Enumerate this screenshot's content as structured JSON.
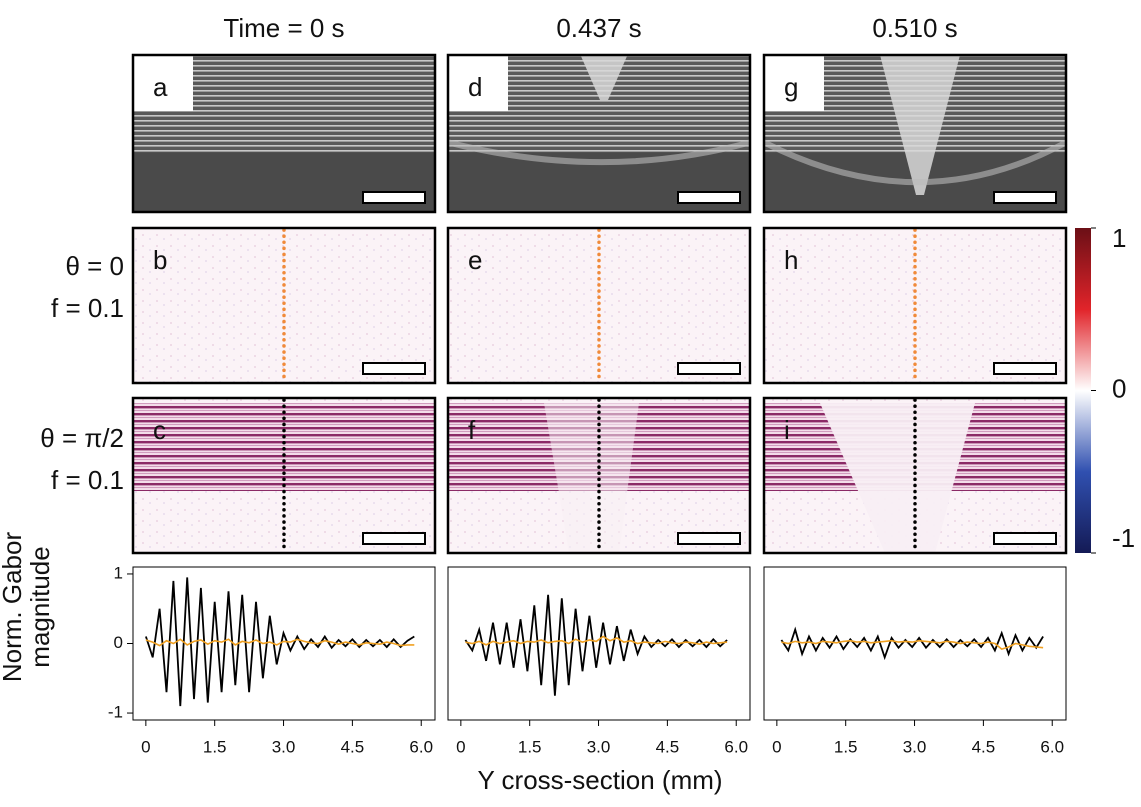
{
  "figure": {
    "column_titles": [
      "Time = 0 s",
      "0.437 s",
      "0.510 s"
    ],
    "panels": [
      [
        "a",
        "b",
        "c"
      ],
      [
        "d",
        "e",
        "f"
      ],
      [
        "g",
        "h",
        "i"
      ]
    ],
    "row_labels": [
      [
        "θ = 0",
        "f = 0.1"
      ],
      [
        "θ = π/2",
        "f = 0.1"
      ]
    ],
    "colorbar": {
      "lim": [
        -1,
        1
      ],
      "ticks": [
        1,
        0,
        -1
      ]
    },
    "y_label": [
      "Norm. Gabor",
      "magnitude"
    ],
    "x_label": "Y cross-section (mm)"
  },
  "chart_data": [
    {
      "type": "line",
      "x": [
        0,
        0.15,
        0.3,
        0.45,
        0.6,
        0.75,
        0.9,
        1.05,
        1.2,
        1.35,
        1.5,
        1.65,
        1.8,
        1.95,
        2.1,
        2.25,
        2.4,
        2.55,
        2.7,
        2.85,
        3,
        3.15,
        3.3,
        3.45,
        3.6,
        3.75,
        3.9,
        4.05,
        4.2,
        4.35,
        4.5,
        4.65,
        4.8,
        4.95,
        5.1,
        5.25,
        5.4,
        5.55,
        5.7,
        5.85
      ],
      "series": [
        {
          "color": "#000000",
          "values": [
            0.1,
            -0.2,
            0.5,
            -0.7,
            0.9,
            -0.9,
            0.95,
            -0.8,
            0.8,
            -0.85,
            0.6,
            -0.7,
            0.75,
            -0.6,
            0.7,
            -0.7,
            0.6,
            -0.5,
            0.4,
            -0.3,
            0.15,
            -0.1,
            0.1,
            -0.08,
            0.06,
            -0.05,
            0.1,
            -0.06,
            0.05,
            -0.04,
            0.06,
            -0.05,
            0.05,
            -0.04,
            0.05,
            -0.05,
            0.06,
            -0.05,
            0.04,
            0.1
          ]
        },
        {
          "color": "#f0a020",
          "values": [
            0.05,
            0.02,
            -0.03,
            0.04,
            0.0,
            0.06,
            -0.02,
            0.03,
            0.05,
            -0.01,
            0.04,
            0.02,
            0.06,
            -0.02,
            0.03,
            0.01,
            0.05,
            0.0,
            0.02,
            -0.02,
            0.03,
            0.02,
            0.06,
            0.03,
            0.01,
            0.0,
            0.04,
            0.02,
            -0.01,
            0.02,
            0.0,
            -0.02,
            0.01,
            0.0,
            -0.01,
            0.02,
            0.0,
            -0.03,
            -0.02,
            -0.02
          ]
        }
      ],
      "xlim": [
        -0.28,
        6.3
      ],
      "ylim": [
        -1.1,
        1.1
      ],
      "xticks": [
        0,
        1.5,
        {
          "value": 3,
          "label": "3.0"
        },
        4.5,
        {
          "value": 6,
          "label": "6.0"
        }
      ],
      "yticks": [
        1,
        0,
        -1
      ]
    },
    {
      "type": "line",
      "x": [
        0.1,
        0.25,
        0.4,
        0.55,
        0.7,
        0.85,
        1,
        1.15,
        1.3,
        1.45,
        1.6,
        1.75,
        1.9,
        2.05,
        2.2,
        2.35,
        2.5,
        2.65,
        2.8,
        2.95,
        3.1,
        3.25,
        3.4,
        3.55,
        3.7,
        3.85,
        4,
        4.15,
        4.3,
        4.45,
        4.6,
        4.75,
        4.9,
        5.05,
        5.2,
        5.35,
        5.5,
        5.65,
        5.8
      ],
      "series": [
        {
          "color": "#000000",
          "values": [
            0.05,
            -0.1,
            0.2,
            -0.25,
            0.3,
            -0.3,
            0.3,
            -0.35,
            0.35,
            -0.4,
            0.55,
            -0.6,
            0.7,
            -0.75,
            0.65,
            -0.6,
            0.5,
            -0.4,
            0.4,
            -0.35,
            0.3,
            -0.3,
            0.25,
            -0.25,
            0.2,
            -0.15,
            0.1,
            -0.05,
            0.05,
            -0.04,
            0.06,
            -0.05,
            0.05,
            -0.04,
            0.05,
            -0.05,
            0.06,
            -0.04,
            0.05
          ]
        },
        {
          "color": "#f0a020",
          "values": [
            0.02,
            0.0,
            0.03,
            -0.02,
            0.03,
            0.0,
            0.02,
            0.04,
            0.0,
            0.03,
            0.02,
            0.05,
            0.01,
            0.03,
            0.04,
            0.0,
            0.06,
            0.02,
            0.05,
            0.03,
            0.1,
            0.04,
            0.08,
            0.02,
            0.04,
            0.0,
            0.02,
            0.01,
            0.0,
            0.03,
            0.01,
            0.0,
            0.02,
            0.01,
            -0.01,
            0.02,
            0.0,
            0.01,
            0.02
          ]
        }
      ],
      "xlim": [
        -0.28,
        6.3
      ],
      "ylim": [
        -1.1,
        1.1
      ],
      "xticks": [
        {
          "value": 0,
          "label": "0"
        },
        1.5,
        {
          "value": 3,
          "label": "3.0"
        },
        4.5,
        {
          "value": 6,
          "label": "6.0"
        }
      ]
    },
    {
      "type": "line",
      "x": [
        0.1,
        0.25,
        0.4,
        0.55,
        0.7,
        0.85,
        1,
        1.15,
        1.3,
        1.45,
        1.6,
        1.75,
        1.9,
        2.05,
        2.2,
        2.35,
        2.5,
        2.65,
        2.8,
        2.95,
        3.1,
        3.25,
        3.4,
        3.55,
        3.7,
        3.85,
        4,
        4.15,
        4.3,
        4.45,
        4.6,
        4.75,
        4.9,
        5.05,
        5.2,
        5.35,
        5.5,
        5.65,
        5.8
      ],
      "series": [
        {
          "color": "#000000",
          "values": [
            0.05,
            -0.1,
            0.2,
            -0.15,
            0.1,
            -0.1,
            0.08,
            -0.06,
            0.1,
            -0.08,
            0.06,
            -0.05,
            0.08,
            -0.1,
            0.1,
            -0.2,
            0.08,
            -0.06,
            0.05,
            -0.05,
            0.08,
            -0.06,
            0.05,
            -0.05,
            0.06,
            -0.05,
            0.05,
            -0.04,
            0.06,
            -0.05,
            0.08,
            -0.1,
            0.15,
            -0.15,
            0.12,
            -0.1,
            0.08,
            -0.06,
            0.1
          ]
        },
        {
          "color": "#f0a020",
          "values": [
            0.02,
            0.0,
            0.03,
            0.01,
            0.02,
            0.0,
            0.03,
            0.02,
            0.01,
            0.03,
            0.04,
            0.02,
            0.03,
            0.01,
            0.02,
            0.03,
            0.04,
            0.02,
            0.03,
            0.02,
            0.04,
            0.03,
            0.02,
            0.01,
            0.03,
            0.02,
            0.0,
            0.02,
            0.01,
            0.0,
            0.02,
            0.0,
            -0.08,
            -0.05,
            0.0,
            -0.02,
            -0.04,
            -0.05,
            -0.06
          ]
        }
      ],
      "xlim": [
        -0.28,
        6.3
      ],
      "ylim": [
        -1.1,
        1.1
      ],
      "xticks": [
        {
          "value": 0,
          "label": "0"
        },
        1.5,
        {
          "value": 3,
          "label": "3.0"
        },
        4.5,
        {
          "value": 6,
          "label": "6.0"
        }
      ]
    }
  ]
}
